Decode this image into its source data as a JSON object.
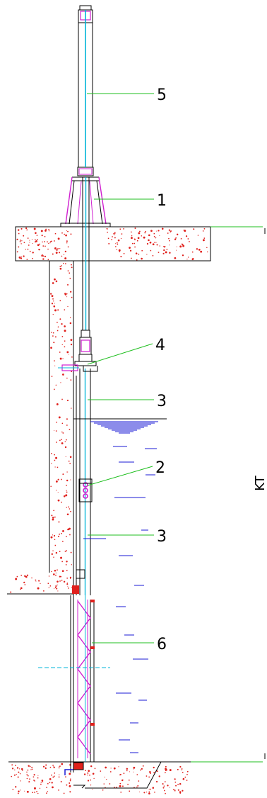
{
  "callouts": [
    {
      "id": "5"
    },
    {
      "id": "1"
    },
    {
      "id": "4"
    },
    {
      "id": "3"
    },
    {
      "id": "2"
    },
    {
      "id": "3"
    },
    {
      "id": "6"
    }
  ],
  "side_label": "KT",
  "colors": {
    "concrete": "#e0201c",
    "leader": "#1fbf1f",
    "structure": "#000000",
    "frame": "#d01fd0",
    "rod": "#00b4d8",
    "water": "#1a1ad6"
  }
}
